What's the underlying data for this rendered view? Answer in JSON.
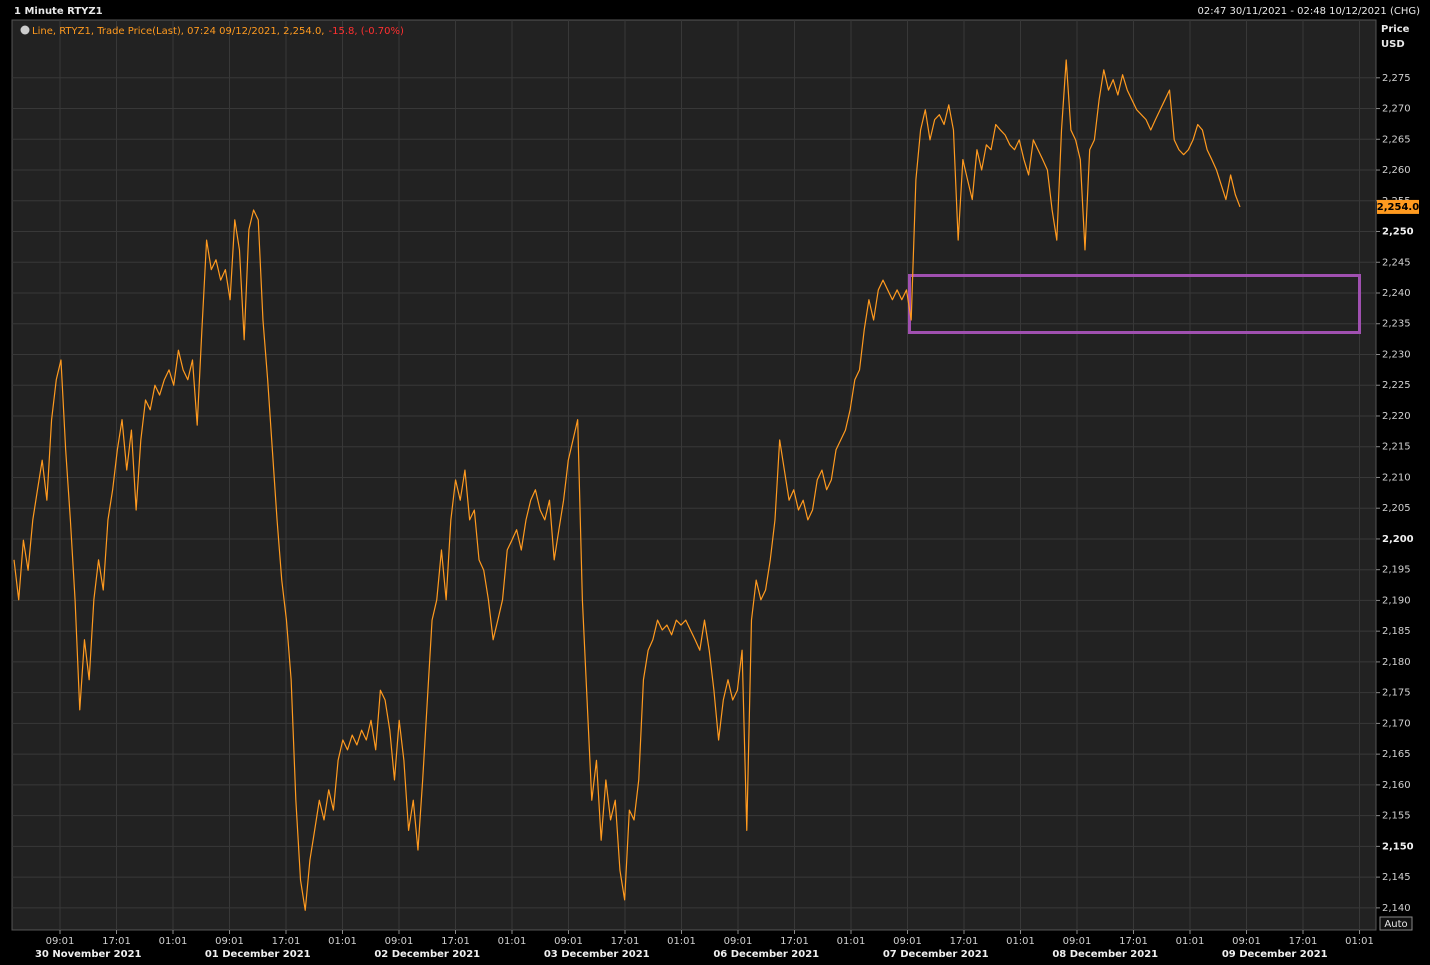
{
  "chart_data": {
    "type": "line",
    "title": "1 Minute RTYZ1",
    "range_text": "02:47 30/11/2021 - 02:48 10/12/2021 (CHG)",
    "legend_text": "Line, RTYZ1, Trade Price(Last), 07:24 09/12/2021, 2,254.0,",
    "legend_change": "-15.8, (-0.70%)",
    "y_axis_label": "Price",
    "y_axis_unit": "USD",
    "auto_button": "Auto",
    "x_tick_labels": [
      "09:01",
      "17:01",
      "01:01",
      "09:01",
      "17:01",
      "01:01",
      "09:01",
      "17:01",
      "01:01",
      "09:01",
      "17:01",
      "01:01",
      "09:01",
      "17:01",
      "01:01",
      "09:01",
      "17:01",
      "01:01",
      "09:01",
      "17:01",
      "01:01",
      "09:01",
      "17:01",
      "01:01"
    ],
    "x_date_labels": [
      "30 November 2021",
      "01 December 2021",
      "02 December 2021",
      "03 December 2021",
      "06 December 2021",
      "07 December 2021",
      "08 December 2021",
      "09 December 2021"
    ],
    "ylim": [
      2136.4,
      2284.4
    ],
    "yticks": [
      {
        "value": 2140,
        "label": "2,140"
      },
      {
        "value": 2145,
        "label": "2,145"
      },
      {
        "value": 2150,
        "label": "2,150"
      },
      {
        "value": 2155,
        "label": "2,155"
      },
      {
        "value": 2160,
        "label": "2,160"
      },
      {
        "value": 2165,
        "label": "2,165"
      },
      {
        "value": 2170,
        "label": "2,170"
      },
      {
        "value": 2175,
        "label": "2,175"
      },
      {
        "value": 2180,
        "label": "2,180"
      },
      {
        "value": 2185,
        "label": "2,185"
      },
      {
        "value": 2190,
        "label": "2,190"
      },
      {
        "value": 2195,
        "label": "2,195"
      },
      {
        "value": 2200,
        "label": "2,200"
      },
      {
        "value": 2205,
        "label": "2,205"
      },
      {
        "value": 2210,
        "label": "2,210"
      },
      {
        "value": 2215,
        "label": "2,215"
      },
      {
        "value": 2220,
        "label": "2,220"
      },
      {
        "value": 2225,
        "label": "2,225"
      },
      {
        "value": 2230,
        "label": "2,230"
      },
      {
        "value": 2235,
        "label": "2,235"
      },
      {
        "value": 2240,
        "label": "2,240"
      },
      {
        "value": 2245,
        "label": "2,245"
      },
      {
        "value": 2250,
        "label": "2,250"
      },
      {
        "value": 2255,
        "label": "2,255"
      },
      {
        "value": 2260,
        "label": "2,260"
      },
      {
        "value": 2265,
        "label": "2,265"
      },
      {
        "value": 2270,
        "label": "2,270"
      },
      {
        "value": 2275,
        "label": "2,275"
      }
    ],
    "grid": true,
    "last_price": {
      "value": 2254.0,
      "label": "2,254.0"
    },
    "series": [
      {
        "name": "RTYZ1",
        "color": "#ff9a1f",
        "values": [
          2196.6,
          2190.1,
          2199.8,
          2194.9,
          2203.1,
          2208,
          2212.8,
          2206.3,
          2219.4,
          2225.9,
          2229.1,
          2214.5,
          2203.1,
          2190.1,
          2172.2,
          2183.6,
          2177.1,
          2190.1,
          2196.6,
          2191.7,
          2203.1,
          2208,
          2214.5,
          2219.4,
          2211.2,
          2217.7,
          2204.7,
          2216.1,
          2222.6,
          2221,
          2225,
          2223.4,
          2225.9,
          2227.5,
          2225,
          2230.7,
          2227.5,
          2225.9,
          2229.1,
          2218.5,
          2234,
          2248.6,
          2243.8,
          2245.4,
          2242.1,
          2243.8,
          2238.9,
          2251.9,
          2247,
          2232.4,
          2250.3,
          2253.5,
          2251.9,
          2235.6,
          2225.9,
          2214.5,
          2203.1,
          2193.3,
          2186.8,
          2177.1,
          2157.5,
          2144.5,
          2139.6,
          2147.8,
          2152.6,
          2157.5,
          2154.3,
          2159.2,
          2155.9,
          2164,
          2167.3,
          2165.7,
          2168.1,
          2166.5,
          2168.9,
          2167.3,
          2170.5,
          2165.7,
          2175.4,
          2173.8,
          2168.9,
          2160.8,
          2170.5,
          2164,
          2152.6,
          2157.5,
          2149.4,
          2160.8,
          2173.8,
          2186.8,
          2190.1,
          2198.2,
          2190.1,
          2203.1,
          2209.6,
          2206.3,
          2211.2,
          2203.1,
          2204.7,
          2196.6,
          2194.9,
          2190.1,
          2183.6,
          2186.8,
          2190.1,
          2198.2,
          2199.8,
          2201.5,
          2198.2,
          2203.1,
          2206.3,
          2208,
          2204.7,
          2203.1,
          2206.3,
          2196.6,
          2201.5,
          2206.3,
          2212.8,
          2216.1,
          2219.4,
          2190.1,
          2173.8,
          2157.5,
          2164,
          2151,
          2160.8,
          2154.3,
          2157.5,
          2146.1,
          2141.3,
          2155.9,
          2154.3,
          2160.8,
          2177.1,
          2181.9,
          2183.6,
          2186.8,
          2185.2,
          2186,
          2184.4,
          2186.8,
          2186,
          2186.8,
          2185.2,
          2183.6,
          2181.9,
          2186.8,
          2181.9,
          2175.4,
          2167.3,
          2173.8,
          2177.1,
          2173.8,
          2175.4,
          2181.9,
          2152.6,
          2186.8,
          2193.3,
          2190.1,
          2191.7,
          2196.6,
          2203.1,
          2216.1,
          2211.2,
          2206.3,
          2208,
          2204.7,
          2206.3,
          2203.1,
          2204.7,
          2209.6,
          2211.2,
          2208,
          2209.6,
          2214.5,
          2216.1,
          2217.7,
          2221,
          2225.9,
          2227.5,
          2234,
          2238.9,
          2235.6,
          2240.5,
          2242.1,
          2240.5,
          2238.9,
          2240.5,
          2238.9,
          2240.5,
          2235.6,
          2258.4,
          2266.5,
          2269.8,
          2264.9,
          2268.2,
          2269,
          2267.4,
          2270.6,
          2266.5,
          2248.6,
          2261.7,
          2258.4,
          2255.2,
          2263.3,
          2260,
          2264.1,
          2263.3,
          2267.4,
          2266.5,
          2265.7,
          2264.1,
          2263.3,
          2264.9,
          2261.7,
          2259.2,
          2264.9,
          2263.3,
          2261.7,
          2260,
          2253.5,
          2248.6,
          2266.5,
          2277.9,
          2266.5,
          2264.9,
          2261.7,
          2247,
          2263.3,
          2264.9,
          2271.4,
          2276.3,
          2273,
          2274.7,
          2272.2,
          2275.5,
          2273,
          2271.4,
          2269.8,
          2269,
          2268.2,
          2266.5,
          2268.2,
          2269.8,
          2271.4,
          2273,
          2264.9,
          2263.3,
          2262.5,
          2263.3,
          2264.9,
          2267.4,
          2266.5,
          2263.3,
          2261.7,
          2260,
          2257.6,
          2255.2,
          2259.2,
          2256,
          2254
        ]
      }
    ]
  }
}
